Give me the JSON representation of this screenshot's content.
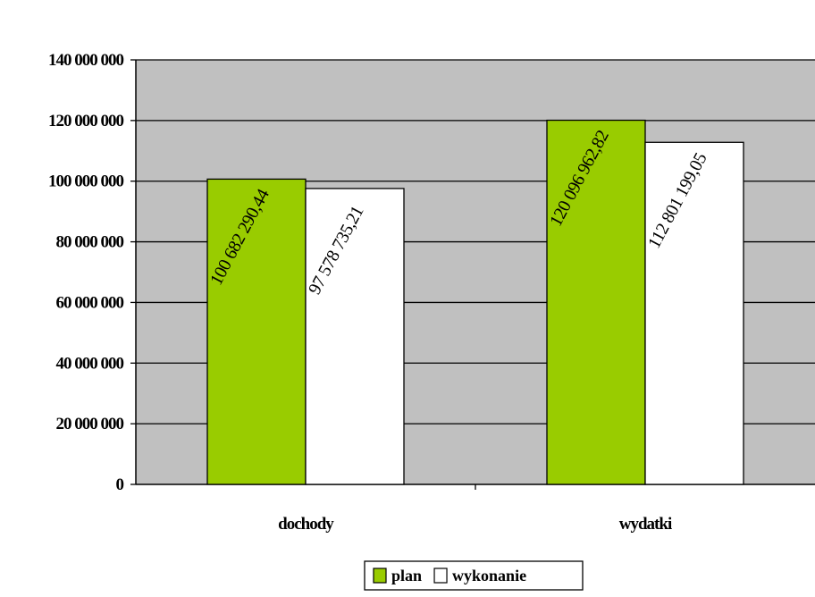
{
  "chart_data": {
    "type": "bar",
    "title": "",
    "categories": [
      "dochody",
      "wydatki"
    ],
    "series": [
      {
        "name": "plan",
        "values": [
          100682290.44,
          120096962.82
        ],
        "labels": [
          "100 682 290,44",
          "120 096 962,82"
        ],
        "color": "#99cc00"
      },
      {
        "name": "wykonanie",
        "values": [
          97578735.21,
          112801199.05
        ],
        "labels": [
          "97 578 735,21",
          "112 801 199,05"
        ],
        "color": "#ffffff"
      }
    ],
    "ylim": [
      0,
      140000000
    ],
    "yticks": [
      0,
      20000000,
      40000000,
      60000000,
      80000000,
      100000000,
      120000000,
      140000000
    ],
    "ytick_labels": [
      "0",
      "20 000 000",
      "40 000 000",
      "60 000 000",
      "80 000 000",
      "100 000 000",
      "120 000 000",
      "140 000 000"
    ],
    "xlabel": "",
    "ylabel": "",
    "grid": true,
    "plot_background": "#c0c0c0",
    "legend_position": "bottom-center"
  }
}
